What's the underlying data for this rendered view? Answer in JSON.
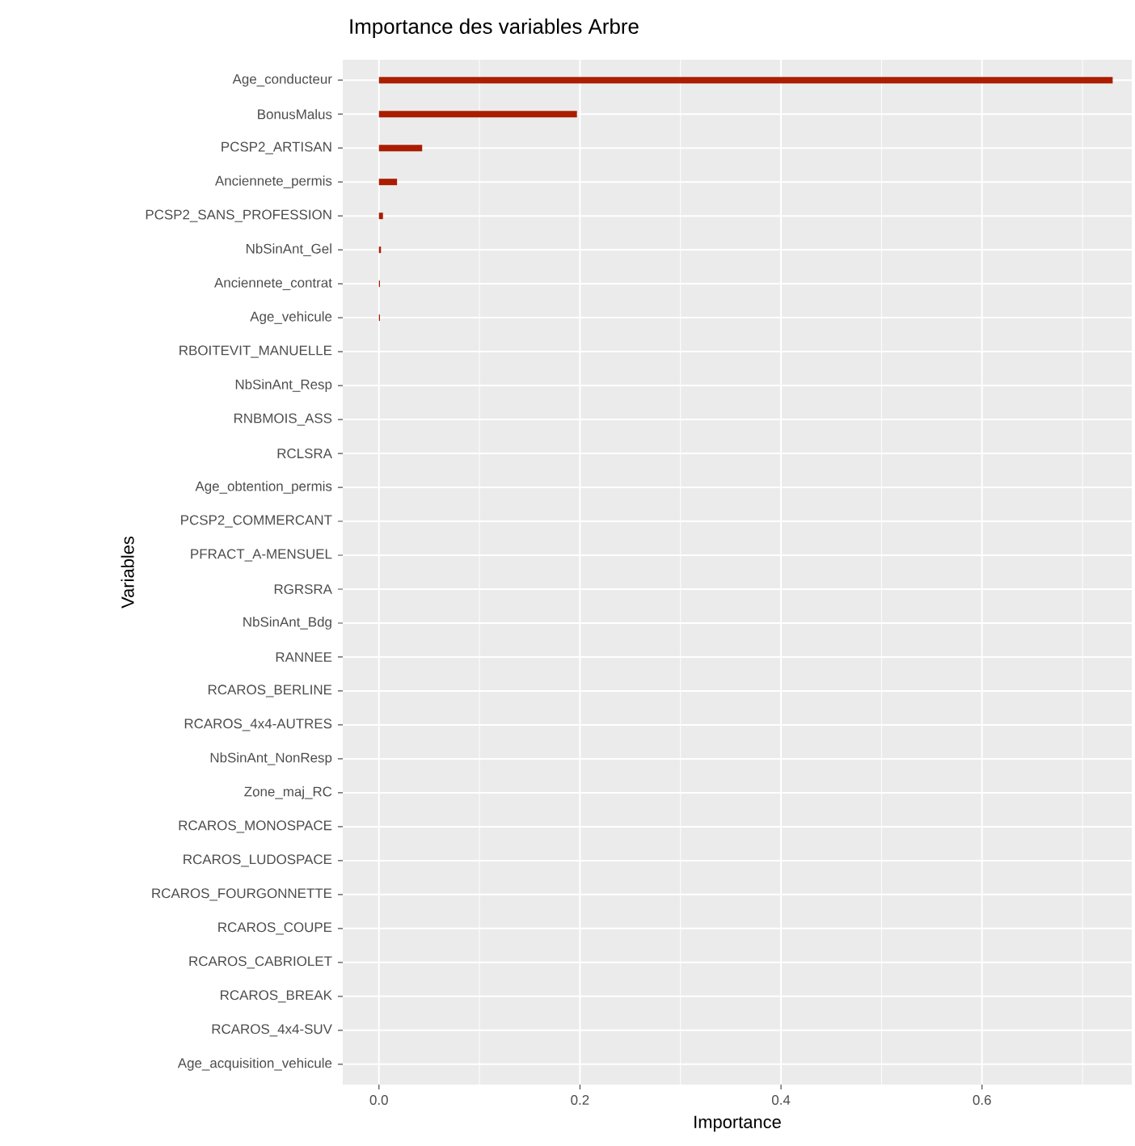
{
  "chart_data": {
    "type": "bar",
    "orientation": "horizontal",
    "title": "Importance des variables Arbre",
    "xlabel": "Importance",
    "ylabel": "Variables",
    "categories": [
      "Age_conducteur",
      "BonusMalus",
      "PCSP2_ARTISAN",
      "Anciennete_permis",
      "PCSP2_SANS_PROFESSION",
      "NbSinAnt_Gel",
      "Anciennete_contrat",
      "Age_vehicule",
      "RBOITEVIT_MANUELLE",
      "NbSinAnt_Resp",
      "RNBMOIS_ASS",
      "RCLSRA",
      "Age_obtention_permis",
      "PCSP2_COMMERCANT",
      "PFRACT_A-MENSUEL",
      "RGRSRA",
      "NbSinAnt_Bdg",
      "RANNEE",
      "RCAROS_BERLINE",
      "RCAROS_4x4-AUTRES",
      "NbSinAnt_NonResp",
      "Zone_maj_RC",
      "RCAROS_MONOSPACE",
      "RCAROS_LUDOSPACE",
      "RCAROS_FOURGONNETTE",
      "RCAROS_COUPE",
      "RCAROS_CABRIOLET",
      "RCAROS_BREAK",
      "RCAROS_4x4-SUV",
      "Age_acquisition_vehicule"
    ],
    "values": [
      0.73,
      0.197,
      0.043,
      0.018,
      0.004,
      0.002,
      0.001,
      0.001,
      0,
      0,
      0,
      0,
      0,
      0,
      0,
      0,
      0,
      0,
      0,
      0,
      0,
      0,
      0,
      0,
      0,
      0,
      0,
      0,
      0,
      0
    ],
    "color": "#aa1d00",
    "xlim": [
      -0.036,
      0.749
    ],
    "xticks": [
      {
        "value": 0,
        "label": "0.0"
      },
      {
        "value": 0.2,
        "label": "0.2"
      },
      {
        "value": 0.4,
        "label": "0.4"
      },
      {
        "value": 0.6,
        "label": "0.6"
      }
    ],
    "grid": true
  }
}
